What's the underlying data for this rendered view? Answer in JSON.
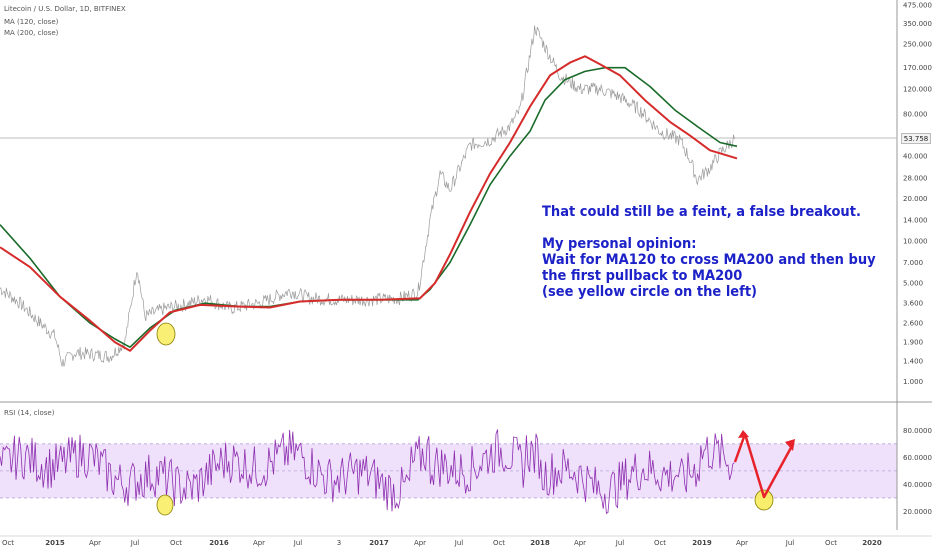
{
  "chart_data": [
    {
      "type": "line",
      "panel": "price",
      "symbol_label": "Litecoin / U.S. Dollar, 1D, BITFINEX",
      "series": [
        {
          "name": "MA (120, close)",
          "color": "#1a6b2a"
        },
        {
          "name": "MA (200, close)",
          "color": "#d62b2b"
        },
        {
          "name": "",
          "color": "#9a9a9a"
        }
      ],
      "price_scale": "log",
      "ylim": [
        0.8,
        475
      ],
      "y_tick_labels": [
        "475.000",
        "350.000",
        "250.000",
        "170.000",
        "120.000",
        "80.000",
        "53.758",
        "40.000",
        "28.000",
        "20.000",
        "14.000",
        "10.000",
        "7.000",
        "5.000",
        "3.600",
        "2.600",
        "1.900",
        "1.400",
        "1.000"
      ],
      "last_price": "53.758",
      "annotation": "That could still be a feint, a false breakout.\n\nMy personal opinion:\nWait for MA120 to cross MA200 and then buy\nthe first pullback to MA200\n(see yellow circle on the left)",
      "highlight": "yellow circle at MA200 pullback, late 2015"
    },
    {
      "type": "line",
      "panel": "rsi",
      "series": [
        {
          "name": "RSI (14, close)",
          "color": "#8e2fb0"
        }
      ],
      "ylim": [
        10,
        95
      ],
      "band": [
        30,
        70
      ],
      "y_tick_labels": [
        "80.0000",
        "60.0000",
        "40.0000",
        "20.0000"
      ],
      "annotation": "red arrow path: up to overbought, down to 30 (yellow circle), up again"
    }
  ],
  "x_axis_labels": [
    "Oct",
    "2015",
    "Apr",
    "Jul",
    "Oct",
    "2016",
    "Apr",
    "Jul",
    "3",
    "2017",
    "Apr",
    "Jul",
    "Oct",
    "2018",
    "Apr",
    "Jul",
    "Oct",
    "2019",
    "Apr",
    "Jul",
    "Oct",
    "2020"
  ],
  "colors": {
    "price": "#9a9a9a",
    "ma120": "#1a6b2a",
    "ma200": "#d62b2b",
    "rsi": "#8e2fb0",
    "rsi_band": "#efe0fb",
    "note": "#1d22c8",
    "highlight": "#f7ec5c",
    "arrow": "#e8222a"
  }
}
